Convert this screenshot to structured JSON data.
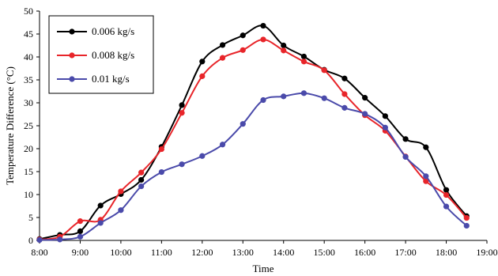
{
  "chart_data": {
    "type": "line",
    "xlabel": "Time",
    "ylabel": "Temperature Difference (°C)",
    "xlim": [
      "8:00",
      "19:00"
    ],
    "ylim": [
      0,
      50
    ],
    "x_ticks": [
      "8:00",
      "9:00",
      "10:00",
      "11:00",
      "12:00",
      "13:00",
      "14:00",
      "15:00",
      "16:00",
      "17:00",
      "18:00",
      "19:00"
    ],
    "y_ticks": [
      0,
      5,
      10,
      15,
      20,
      25,
      30,
      35,
      40,
      45,
      50
    ],
    "grid": false,
    "legend_position": "top-left",
    "x": [
      "8:00",
      "8:30",
      "9:00",
      "9:30",
      "10:00",
      "10:30",
      "11:00",
      "11:30",
      "12:00",
      "12:30",
      "13:00",
      "13:30",
      "14:00",
      "14:30",
      "15:00",
      "15:30",
      "16:00",
      "16:30",
      "17:00",
      "17:30",
      "18:00",
      "18:30"
    ],
    "series": [
      {
        "name": "0.006 kg/s",
        "color": "#000000",
        "values": [
          0.3,
          1.2,
          2.0,
          7.6,
          10.1,
          13.2,
          20.4,
          29.5,
          39.0,
          42.6,
          44.7,
          46.8,
          42.5,
          40.1,
          37.2,
          35.3,
          31.1,
          27.1,
          22.1,
          20.3,
          11.0,
          5.3
        ]
      },
      {
        "name": "0.008 kg/s",
        "color": "#e8252a",
        "values": [
          0.2,
          0.8,
          4.2,
          4.5,
          10.7,
          14.8,
          19.9,
          27.8,
          35.8,
          39.8,
          41.5,
          43.8,
          41.4,
          39.0,
          37.1,
          31.9,
          27.3,
          23.9,
          18.3,
          12.9,
          9.9,
          4.9
        ]
      },
      {
        "name": "0.01 kg/s",
        "color": "#4a4aaa",
        "values": [
          0.1,
          0.2,
          0.8,
          3.8,
          6.6,
          11.8,
          14.9,
          16.6,
          18.4,
          20.9,
          25.4,
          30.6,
          31.4,
          32.1,
          31.0,
          28.9,
          27.6,
          24.6,
          18.2,
          14.0,
          7.4,
          3.2
        ]
      }
    ]
  }
}
